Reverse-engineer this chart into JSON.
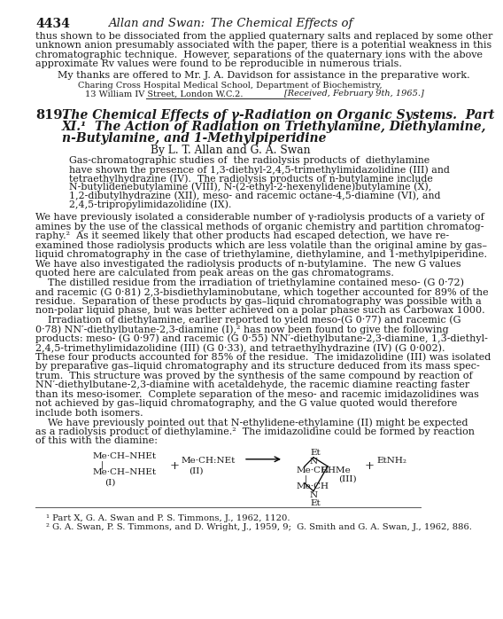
{
  "page_number": "4434",
  "header_title": "Allan and Swan: The Chemical Effects of",
  "para1_lines": [
    "thus shown to be dissociated from the applied quaternary salts and replaced by some other",
    "unknown anion presumably associated with the paper, there is a potential weakness in this",
    "chromatographic technique.  However, separations of the quaternary ions with the above",
    "approximate Rv values were found to be reproducible in numerous trials."
  ],
  "thanks": "My thanks are offered to Mr. J. A. Davidson for assistance in the preparative work.",
  "institution1": "Charing Cross Hospital Medical School, Department of Biochemistry,",
  "institution2": "13 William IV Street, London W.C.2.",
  "received": "[Received, February 9th, 1965.]",
  "article_num": "819.",
  "article_title_line1": "The Chemical Effects of γ-Radiation on Organic Systems.  Part",
  "article_title_line2": "XI.¹  The Action of Radiation on Triethylamine, Diethylamine,",
  "article_title_line3": "n-Butylamine, and 1-Methylpiperidine",
  "authors": "By L. T. Allan and G. A. Swan",
  "abstract_lines": [
    "Gas-chromatographic studies of  the radiolysis products of  diethylamine",
    "have shown the presence of 1,3-diethyl-2,4,5-trimethylimidazolidine (III) and",
    "tetraethylhydrazine (IV).  The radiolysis products of n-butylamine include",
    "N-butylidenebutylamine (VIII), N-(2-ethyl-2-hexenylidene)butylamine (X),",
    "1,2-dibutylhydrazine (XII), meso- and racemic octane-4,5-diamine (VI), and",
    "2,4,5-tripropylimidazolidine (IX)."
  ],
  "body1_lines": [
    "We have previously isolated a considerable number of γ-radiolysis products of a variety of",
    "amines by the use of the classical methods of organic chemistry and partition chromatog-",
    "raphy.²  As it seemed likely that other products had escaped detection, we have re-",
    "examined those radiolysis products which are less volatile than the original amine by gas–",
    "liquid chromatography in the case of triethylamine, diethylamine, and 1-methylpiperidine.",
    "We have also investigated the radiolysis products of n-butylamine.  The new G values",
    "quoted here are calculated from peak areas on the gas chromatograms."
  ],
  "body2_lines": [
    "    The distilled residue from the irradiation of triethylamine contained meso- (G 0·72)",
    "and racemic (G 0·81) 2,3-bisdiethylaminobutane, which together accounted for 89% of the",
    "residue.  Separation of these products by gas–liquid chromatography was possible with a",
    "non-polar liquid phase, but was better achieved on a polar phase such as Carbowax 1000."
  ],
  "body3_lines": [
    "    Irradiation of diethylamine, earlier reported to yield meso-(G 0·77) and racemic (G",
    "0·78) NN′-diethylbutane-2,3-diamine (I),² has now been found to give the following",
    "products: meso- (G 0·97) and racemic (G 0·55) NN′-diethylbutane-2,3-diamine, 1,3-diethyl-",
    "2,4,5-trimethylimidazolidine (III) (G 0·33), and tetraethylhydrazine (IV) (G 0·002).",
    "These four products accounted for 85% of the residue.  The imidazolidine (III) was isolated",
    "by preparative gas–liquid chromatography and its structure deduced from its mass spec-",
    "trum.  This structure was proved by the synthesis of the same compound by reaction of",
    "NN′-diethylbutane-2,3-diamine with acetaldehyde, the racemic diamine reacting faster",
    "than its meso-isomer.  Complete separation of the meso- and racemic imidazolidines was",
    "not achieved by gas–liquid chromatography, and the G value quoted would therefore",
    "include both isomers."
  ],
  "body4_lines": [
    "    We have previously pointed out that N-ethylidene-ethylamine (II) might be expected",
    "as a radiolysis product of diethylamine.²  The imidazolidine could be formed by reaction",
    "of this with the diamine:"
  ],
  "footnote1": "¹ Part X, G. A. Swan and P. S. Timmons, J., 1962, 1120.",
  "footnote2": "² G. A. Swan, P. S. Timmons, and D. Wright, J., 1959, 9;  G. Smith and G. A. Swan, J., 1962, 886.",
  "bg_color": "#ffffff",
  "text_color": "#1a1a1a"
}
